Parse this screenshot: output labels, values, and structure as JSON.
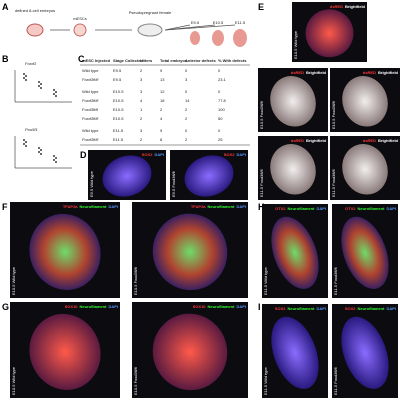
{
  "panels": {
    "a": {
      "label": "A",
      "steps": [
        "defined 8-cell embryos",
        "mESCs",
        "Pseudopregnant female"
      ],
      "stages": [
        "E9.5",
        "E10.5",
        "E11.5"
      ]
    },
    "b": {
      "label": "B",
      "genes": [
        "Foxd3",
        "Pou5f1"
      ]
    },
    "c": {
      "label": "C",
      "header": [
        "mESC Injected",
        "Stage Collected",
        "Litters",
        "Total embryos",
        "Anterior defects",
        "% With defects"
      ],
      "rows": [
        [
          "Wild type",
          "E9.5",
          "2",
          "9",
          "0",
          "0"
        ],
        [
          "Foxd3fl/fl",
          "E9.5",
          "3",
          "13",
          "3",
          "23.1"
        ],
        [
          "Wild type",
          "E10.5",
          "3",
          "12",
          "0",
          "0"
        ],
        [
          "Foxd3fl/fl",
          "E10.5",
          "4",
          "18",
          "14",
          "77.8"
        ],
        [
          "Foxd3fl/fl",
          "E10.5",
          "1",
          "2",
          "2",
          "100"
        ],
        [
          "Foxd3fl/fl",
          "E10.5",
          "2",
          "4",
          "2",
          "50"
        ],
        [
          "Wild type",
          "E11.5",
          "3",
          "9",
          "0",
          "0"
        ],
        [
          "Foxd3fl/fl",
          "E11.5",
          "2",
          "8",
          "2",
          "25"
        ]
      ]
    },
    "d": {
      "label": "D",
      "stain": [
        "SOX2",
        "DAPI"
      ],
      "images": [
        "E9.5 Wild type",
        "E9.5 Foxd3fl/fl"
      ]
    },
    "e": {
      "label": "E",
      "stain": [
        "dsRED",
        "Brightfield"
      ],
      "images": [
        "E10.5 Wild type",
        "E10.5 Foxd3fl/fl",
        "E10.5 Foxd3fl/fl",
        "E11.5 Foxd3fl/fl",
        "E11.5 Foxd3fl/fl"
      ]
    },
    "f": {
      "label": "F",
      "stain": [
        "TFAP2a",
        "Neurofilament",
        "DAPI"
      ],
      "images": [
        "E10.5 Wild type",
        "E10.5 Foxd3fl/fl"
      ]
    },
    "g": {
      "label": "G",
      "stain": [
        "SOX10",
        "Neurofilament",
        "DAPI"
      ],
      "images": [
        "E10.5 Wild type",
        "E10.5 Foxd3fl/fl"
      ]
    },
    "h": {
      "label": "H",
      "stain": [
        "OTX2",
        "Neurofilament",
        "DAPI"
      ],
      "images": [
        "E11.5 Wild type",
        "E11.5 Foxd3fl/fl"
      ]
    },
    "i": {
      "label": "I",
      "stain": [
        "SOX2",
        "Neurofilament",
        "DAPI"
      ],
      "images": [
        "E11.5 Wild type",
        "E11.5 Foxd3fl/fl"
      ]
    }
  }
}
